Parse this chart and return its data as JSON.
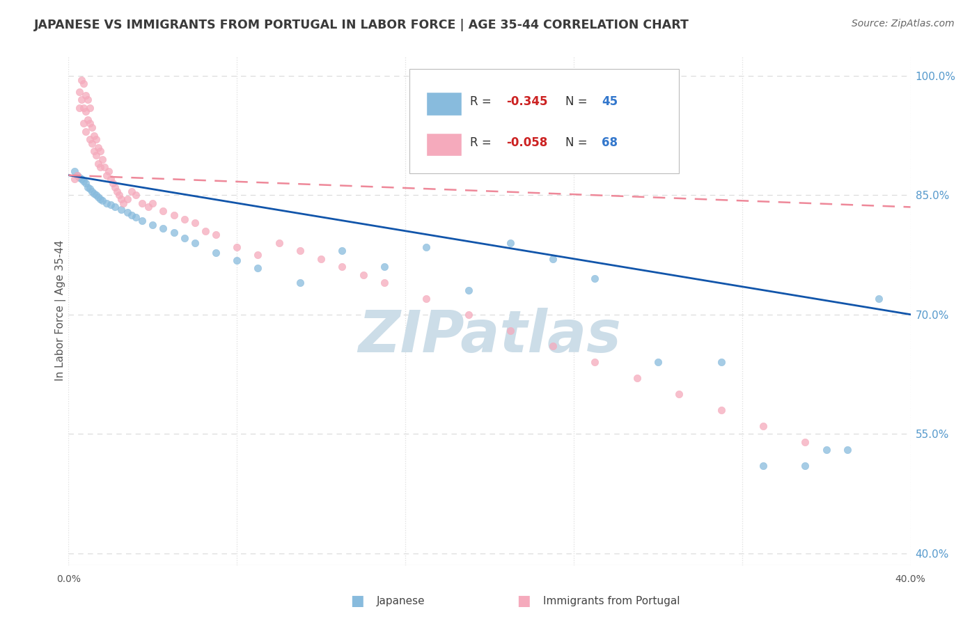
{
  "title": "JAPANESE VS IMMIGRANTS FROM PORTUGAL IN LABOR FORCE | AGE 35-44 CORRELATION CHART",
  "source": "Source: ZipAtlas.com",
  "ylabel": "In Labor Force | Age 35-44",
  "xlim": [
    0.0,
    0.4
  ],
  "ylim": [
    0.385,
    1.025
  ],
  "xticks": [
    0.0,
    0.08,
    0.16,
    0.24,
    0.32,
    0.4
  ],
  "ytick_positions": [
    0.4,
    0.55,
    0.7,
    0.85,
    1.0
  ],
  "yticklabels_right": [
    "40.0%",
    "55.0%",
    "70.0%",
    "85.0%",
    "100.0%"
  ],
  "title_color": "#3a3a3a",
  "title_fontsize": 12.5,
  "source_color": "#666666",
  "source_fontsize": 10,
  "grid_color": "#dddddd",
  "right_tick_color": "#5599cc",
  "japanese_color": "#88bbdd",
  "portuguese_color": "#f5aabc",
  "japanese_line_color": "#1155aa",
  "portuguese_line_color": "#ee8899",
  "watermark": "ZIPatlas",
  "watermark_color": "#ccdde8",
  "watermark_fontsize": 60,
  "japanese_x": [
    0.003,
    0.004,
    0.005,
    0.006,
    0.007,
    0.008,
    0.009,
    0.01,
    0.011,
    0.012,
    0.013,
    0.014,
    0.015,
    0.016,
    0.018,
    0.02,
    0.022,
    0.025,
    0.028,
    0.03,
    0.032,
    0.035,
    0.04,
    0.045,
    0.05,
    0.055,
    0.06,
    0.07,
    0.08,
    0.09,
    0.11,
    0.13,
    0.15,
    0.17,
    0.19,
    0.21,
    0.23,
    0.25,
    0.28,
    0.31,
    0.33,
    0.35,
    0.36,
    0.37,
    0.385
  ],
  "japanese_y": [
    0.88,
    0.875,
    0.872,
    0.87,
    0.868,
    0.865,
    0.86,
    0.858,
    0.855,
    0.852,
    0.85,
    0.848,
    0.845,
    0.843,
    0.84,
    0.838,
    0.835,
    0.832,
    0.828,
    0.825,
    0.822,
    0.818,
    0.813,
    0.808,
    0.803,
    0.796,
    0.79,
    0.778,
    0.768,
    0.758,
    0.74,
    0.78,
    0.76,
    0.785,
    0.73,
    0.79,
    0.77,
    0.745,
    0.64,
    0.64,
    0.51,
    0.51,
    0.53,
    0.53,
    0.72
  ],
  "portuguese_x": [
    0.003,
    0.004,
    0.005,
    0.005,
    0.006,
    0.006,
    0.007,
    0.007,
    0.007,
    0.008,
    0.008,
    0.008,
    0.009,
    0.009,
    0.01,
    0.01,
    0.01,
    0.011,
    0.011,
    0.012,
    0.012,
    0.013,
    0.013,
    0.014,
    0.014,
    0.015,
    0.015,
    0.016,
    0.017,
    0.018,
    0.019,
    0.02,
    0.021,
    0.022,
    0.023,
    0.024,
    0.025,
    0.026,
    0.028,
    0.03,
    0.032,
    0.035,
    0.038,
    0.04,
    0.045,
    0.05,
    0.055,
    0.06,
    0.065,
    0.07,
    0.08,
    0.09,
    0.1,
    0.11,
    0.12,
    0.13,
    0.14,
    0.15,
    0.17,
    0.19,
    0.21,
    0.23,
    0.25,
    0.27,
    0.29,
    0.31,
    0.33,
    0.35
  ],
  "portuguese_y": [
    0.87,
    0.875,
    0.98,
    0.96,
    0.995,
    0.97,
    0.99,
    0.96,
    0.94,
    0.975,
    0.955,
    0.93,
    0.97,
    0.945,
    0.96,
    0.94,
    0.92,
    0.935,
    0.915,
    0.925,
    0.905,
    0.92,
    0.9,
    0.91,
    0.89,
    0.905,
    0.885,
    0.895,
    0.885,
    0.875,
    0.88,
    0.87,
    0.865,
    0.86,
    0.855,
    0.85,
    0.845,
    0.84,
    0.845,
    0.855,
    0.85,
    0.84,
    0.835,
    0.84,
    0.83,
    0.825,
    0.82,
    0.815,
    0.805,
    0.8,
    0.785,
    0.775,
    0.79,
    0.78,
    0.77,
    0.76,
    0.75,
    0.74,
    0.72,
    0.7,
    0.68,
    0.66,
    0.64,
    0.62,
    0.6,
    0.58,
    0.56,
    0.54
  ]
}
